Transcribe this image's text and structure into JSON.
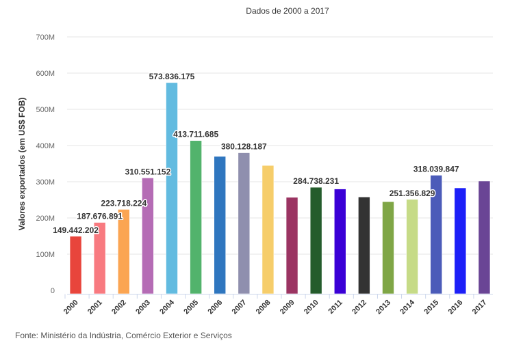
{
  "chart_data": {
    "type": "bar",
    "title": "Dados de 2000 a 2017",
    "xlabel": "",
    "ylabel": "Valores exportados (em US$ FOB)",
    "ylim": [
      0,
      700000000
    ],
    "yticks": [
      0,
      100000000,
      200000000,
      300000000,
      400000000,
      500000000,
      600000000,
      700000000
    ],
    "ytick_labels": [
      "0",
      "100M",
      "200M",
      "300M",
      "400M",
      "500M",
      "600M",
      "700M"
    ],
    "grid": true,
    "categories": [
      "2000",
      "2001",
      "2002",
      "2003",
      "2004",
      "2005",
      "2006",
      "2007",
      "2008",
      "2009",
      "2010",
      "2011",
      "2012",
      "2013",
      "2014",
      "2015",
      "2016",
      "2017"
    ],
    "values": [
      149442202,
      187676891,
      223718224,
      310551152,
      573836175,
      413711685,
      370000000,
      380128187,
      345000000,
      257000000,
      284738231,
      280000000,
      258000000,
      245000000,
      251356829,
      318039847,
      283000000,
      302000000
    ],
    "data_labels": [
      "149.442.202",
      "187.676.891",
      "223.718.224",
      "310.551.152",
      "573.836.175",
      "413.711.685",
      "",
      "380.128.187",
      "",
      "",
      "284.738.231",
      "",
      "",
      "",
      "251.356.829",
      "318.039.847",
      "",
      ""
    ],
    "colors": [
      "#e8453c",
      "#f87a80",
      "#fba552",
      "#b56cb5",
      "#62bbe0",
      "#52b36c",
      "#2f76bf",
      "#8f8fae",
      "#f6cd6a",
      "#9b3462",
      "#245c2c",
      "#3a00d6",
      "#333333",
      "#7fa646",
      "#c6db87",
      "#4b5bb9",
      "#1c1ff8",
      "#6a4595"
    ]
  },
  "source": "Fonte: Ministério da Indústria, Comércio Exterior e Serviços"
}
